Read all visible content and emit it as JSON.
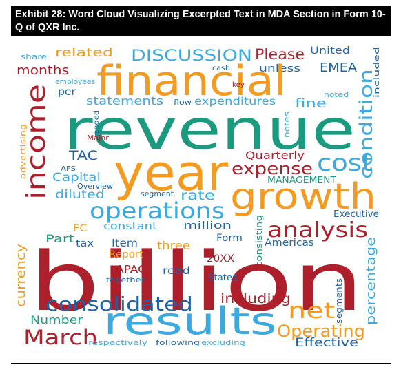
{
  "title": "Exhibit 28: Word Cloud Visualizing Excerpted Text in MDA Section in Form 10-Q of QXR Inc.",
  "colors": {
    "red": "#ad1f2b",
    "green": "#1a9a7f",
    "orange": "#f49a1e",
    "blue": "#1e64a8",
    "cyan": "#3baae0"
  },
  "words": [
    {
      "text": "share",
      "color": "cyan"
    },
    {
      "text": "related",
      "color": "orange"
    },
    {
      "text": "DISCUSSION",
      "color": "cyan"
    },
    {
      "text": "Please",
      "color": "red"
    },
    {
      "text": "United",
      "color": "blue"
    },
    {
      "text": "cash",
      "color": "blue"
    },
    {
      "text": "unless",
      "color": "blue"
    },
    {
      "text": "included",
      "color": "blue"
    },
    {
      "text": "months",
      "color": "red"
    },
    {
      "text": "EMEA",
      "color": "blue"
    },
    {
      "text": "financial",
      "color": "orange"
    },
    {
      "text": "employees",
      "color": "cyan"
    },
    {
      "text": "key",
      "color": "red"
    },
    {
      "text": "per",
      "color": "blue"
    },
    {
      "text": "noted",
      "color": "cyan"
    },
    {
      "text": "statements",
      "color": "cyan"
    },
    {
      "text": "flow",
      "color": "blue"
    },
    {
      "text": "expenditures",
      "color": "cyan"
    },
    {
      "text": "fine",
      "color": "cyan"
    },
    {
      "text": "income",
      "color": "red"
    },
    {
      "text": "revenue",
      "color": "green"
    },
    {
      "text": "condition",
      "color": "cyan"
    },
    {
      "text": "notes",
      "color": "cyan"
    },
    {
      "text": "advertising",
      "color": "orange"
    },
    {
      "text": "ended",
      "color": "blue"
    },
    {
      "text": "Major",
      "color": "red"
    },
    {
      "text": "TAC",
      "color": "blue"
    },
    {
      "text": "year",
      "color": "orange"
    },
    {
      "text": "Quarterly",
      "color": "red"
    },
    {
      "text": "cost",
      "color": "cyan"
    },
    {
      "text": "AFS",
      "color": "blue"
    },
    {
      "text": "Capital",
      "color": "cyan"
    },
    {
      "text": "expense",
      "color": "red"
    },
    {
      "text": "Overview",
      "color": "blue"
    },
    {
      "text": "MANAGEMENT",
      "color": "green"
    },
    {
      "text": "diluted",
      "color": "cyan"
    },
    {
      "text": "segment",
      "color": "blue"
    },
    {
      "text": "rate",
      "color": "cyan"
    },
    {
      "text": "growth",
      "color": "orange"
    },
    {
      "text": "operations",
      "color": "cyan"
    },
    {
      "text": "Executive",
      "color": "blue"
    },
    {
      "text": "EC",
      "color": "orange"
    },
    {
      "text": "constant",
      "color": "cyan"
    },
    {
      "text": "million",
      "color": "blue"
    },
    {
      "text": "consisting",
      "color": "green"
    },
    {
      "text": "analysis",
      "color": "red"
    },
    {
      "text": "Part",
      "color": "green"
    },
    {
      "text": "Form",
      "color": "blue"
    },
    {
      "text": "tax",
      "color": "blue"
    },
    {
      "text": "Item",
      "color": "blue"
    },
    {
      "text": "three",
      "color": "orange"
    },
    {
      "text": "Americas",
      "color": "blue"
    },
    {
      "text": "percentage",
      "color": "cyan"
    },
    {
      "text": "currency",
      "color": "orange"
    },
    {
      "text": "billion",
      "color": "red"
    },
    {
      "text": "Report",
      "color": "orange"
    },
    {
      "text": "20XX",
      "color": "red"
    },
    {
      "text": "APAC",
      "color": "red"
    },
    {
      "text": "read",
      "color": "blue"
    },
    {
      "text": "together",
      "color": "blue"
    },
    {
      "text": "States",
      "color": "blue"
    },
    {
      "text": "segments",
      "color": "blue"
    },
    {
      "text": "consolidated",
      "color": "blue"
    },
    {
      "text": "including",
      "color": "red"
    },
    {
      "text": "net",
      "color": "orange"
    },
    {
      "text": "Number",
      "color": "green"
    },
    {
      "text": "results",
      "color": "cyan"
    },
    {
      "text": "March",
      "color": "red"
    },
    {
      "text": "Operating",
      "color": "orange"
    },
    {
      "text": "respectively",
      "color": "cyan"
    },
    {
      "text": "following",
      "color": "blue"
    },
    {
      "text": "excluding",
      "color": "cyan"
    },
    {
      "text": "Effective",
      "color": "blue"
    }
  ]
}
